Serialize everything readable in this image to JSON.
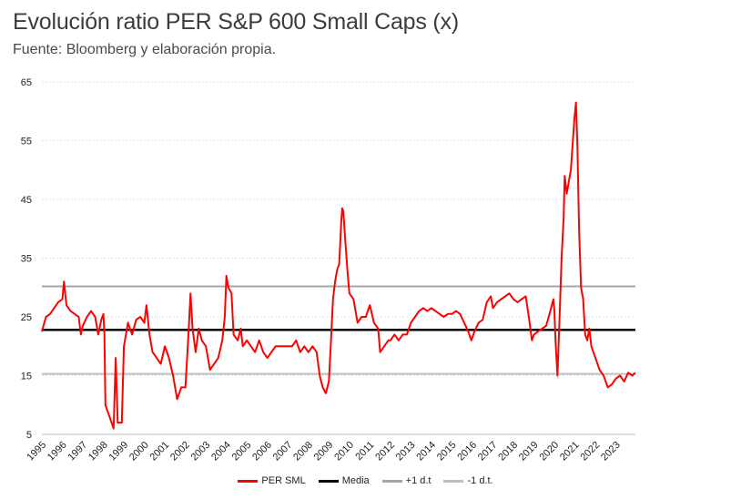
{
  "header": {
    "title": "Evolución ratio PER S&P 600 Small Caps (x)",
    "subtitle": "Fuente: Bloomberg y elaboración propia."
  },
  "chart_data": {
    "type": "line",
    "title": "Evolución ratio PER S&P 600 Small Caps (x)",
    "xlabel": "",
    "ylabel": "",
    "xlim": [
      1995,
      2023.95
    ],
    "ylim": [
      5,
      65
    ],
    "y_ticks": [
      5,
      15,
      25,
      35,
      45,
      55,
      65
    ],
    "x_ticks": [
      "1995",
      "1996",
      "1997",
      "1998",
      "1999",
      "2000",
      "2001",
      "2002",
      "2003",
      "2004",
      "2005",
      "2006",
      "2007",
      "2008",
      "2009",
      "2010",
      "2011",
      "2012",
      "2013",
      "2014",
      "2015",
      "2016",
      "2017",
      "2018",
      "2019",
      "2020",
      "2021",
      "2022",
      "2023"
    ],
    "grid": true,
    "legend_position": "bottom",
    "series": [
      {
        "name": "PER SML",
        "color": "#ff0000",
        "points": [
          [
            1995.0,
            22.5
          ],
          [
            1995.2,
            25
          ],
          [
            1995.4,
            25.5
          ],
          [
            1995.6,
            26.5
          ],
          [
            1995.8,
            27.5
          ],
          [
            1996.0,
            28
          ],
          [
            1996.08,
            31
          ],
          [
            1996.2,
            27
          ],
          [
            1996.4,
            26
          ],
          [
            1996.6,
            25.5
          ],
          [
            1996.8,
            25
          ],
          [
            1996.9,
            22
          ],
          [
            1997.0,
            23.5
          ],
          [
            1997.2,
            25
          ],
          [
            1997.4,
            26
          ],
          [
            1997.6,
            25
          ],
          [
            1997.75,
            22
          ],
          [
            1997.9,
            24.5
          ],
          [
            1998.0,
            25.5
          ],
          [
            1998.05,
            22
          ],
          [
            1998.1,
            10
          ],
          [
            1998.3,
            8
          ],
          [
            1998.5,
            6
          ],
          [
            1998.6,
            18
          ],
          [
            1998.7,
            7
          ],
          [
            1998.9,
            7
          ],
          [
            1999.0,
            20
          ],
          [
            1999.2,
            24
          ],
          [
            1999.4,
            22
          ],
          [
            1999.6,
            24.5
          ],
          [
            1999.8,
            25
          ],
          [
            2000.0,
            24
          ],
          [
            2000.1,
            27
          ],
          [
            2000.25,
            22
          ],
          [
            2000.4,
            19
          ],
          [
            2000.6,
            18
          ],
          [
            2000.8,
            17
          ],
          [
            2001.0,
            20
          ],
          [
            2001.2,
            18
          ],
          [
            2001.4,
            15
          ],
          [
            2001.6,
            11
          ],
          [
            2001.8,
            13
          ],
          [
            2002.0,
            13
          ],
          [
            2002.15,
            22
          ],
          [
            2002.25,
            29
          ],
          [
            2002.35,
            23
          ],
          [
            2002.5,
            19
          ],
          [
            2002.65,
            23
          ],
          [
            2002.8,
            21
          ],
          [
            2003.0,
            20
          ],
          [
            2003.2,
            16
          ],
          [
            2003.4,
            17
          ],
          [
            2003.6,
            18
          ],
          [
            2003.8,
            21
          ],
          [
            2003.92,
            25
          ],
          [
            2004.0,
            32
          ],
          [
            2004.1,
            30
          ],
          [
            2004.25,
            29
          ],
          [
            2004.35,
            22
          ],
          [
            2004.55,
            21
          ],
          [
            2004.7,
            23
          ],
          [
            2004.8,
            20
          ],
          [
            2005.0,
            21
          ],
          [
            2005.2,
            20
          ],
          [
            2005.4,
            19
          ],
          [
            2005.6,
            21
          ],
          [
            2005.8,
            19
          ],
          [
            2006.0,
            18
          ],
          [
            2006.2,
            19
          ],
          [
            2006.4,
            20
          ],
          [
            2006.6,
            20
          ],
          [
            2006.8,
            20
          ],
          [
            2007.0,
            20
          ],
          [
            2007.2,
            20
          ],
          [
            2007.4,
            21
          ],
          [
            2007.6,
            19
          ],
          [
            2007.8,
            20
          ],
          [
            2008.0,
            19
          ],
          [
            2008.2,
            20
          ],
          [
            2008.4,
            19
          ],
          [
            2008.55,
            15
          ],
          [
            2008.7,
            13
          ],
          [
            2008.85,
            12
          ],
          [
            2009.0,
            14
          ],
          [
            2009.1,
            21
          ],
          [
            2009.2,
            28
          ],
          [
            2009.3,
            31
          ],
          [
            2009.4,
            33
          ],
          [
            2009.5,
            34
          ],
          [
            2009.6,
            41
          ],
          [
            2009.65,
            43.5
          ],
          [
            2009.7,
            43
          ],
          [
            2009.8,
            38
          ],
          [
            2009.9,
            33
          ],
          [
            2010.0,
            29
          ],
          [
            2010.2,
            28
          ],
          [
            2010.4,
            24
          ],
          [
            2010.6,
            25
          ],
          [
            2010.8,
            25
          ],
          [
            2011.0,
            27
          ],
          [
            2011.2,
            24
          ],
          [
            2011.4,
            23
          ],
          [
            2011.5,
            19
          ],
          [
            2011.7,
            20
          ],
          [
            2011.9,
            21
          ],
          [
            2012.0,
            21
          ],
          [
            2012.2,
            22
          ],
          [
            2012.4,
            21
          ],
          [
            2012.6,
            22
          ],
          [
            2012.8,
            22
          ],
          [
            2013.0,
            24
          ],
          [
            2013.2,
            25
          ],
          [
            2013.4,
            26
          ],
          [
            2013.6,
            26.5
          ],
          [
            2013.8,
            26
          ],
          [
            2014.0,
            26.5
          ],
          [
            2014.2,
            26
          ],
          [
            2014.4,
            25.5
          ],
          [
            2014.6,
            25
          ],
          [
            2014.8,
            25.5
          ],
          [
            2015.0,
            25.5
          ],
          [
            2015.2,
            26
          ],
          [
            2015.4,
            25.5
          ],
          [
            2015.6,
            24
          ],
          [
            2015.8,
            22.5
          ],
          [
            2015.95,
            21
          ],
          [
            2016.1,
            22.5
          ],
          [
            2016.3,
            24
          ],
          [
            2016.5,
            24.5
          ],
          [
            2016.7,
            27.5
          ],
          [
            2016.9,
            28.5
          ],
          [
            2017.0,
            26.5
          ],
          [
            2017.2,
            27.5
          ],
          [
            2017.4,
            28
          ],
          [
            2017.6,
            28.5
          ],
          [
            2017.8,
            29
          ],
          [
            2018.0,
            28
          ],
          [
            2018.2,
            27.5
          ],
          [
            2018.4,
            28
          ],
          [
            2018.6,
            28.5
          ],
          [
            2018.75,
            25
          ],
          [
            2018.9,
            21
          ],
          [
            2019.0,
            22
          ],
          [
            2019.2,
            22.5
          ],
          [
            2019.4,
            23
          ],
          [
            2019.6,
            23.5
          ],
          [
            2019.8,
            26
          ],
          [
            2019.95,
            28
          ],
          [
            2020.0,
            26
          ],
          [
            2020.05,
            21
          ],
          [
            2020.15,
            15
          ],
          [
            2020.25,
            25
          ],
          [
            2020.35,
            35
          ],
          [
            2020.45,
            42
          ],
          [
            2020.5,
            49
          ],
          [
            2020.6,
            46
          ],
          [
            2020.7,
            48
          ],
          [
            2020.8,
            50
          ],
          [
            2020.9,
            55
          ],
          [
            2020.98,
            59
          ],
          [
            2021.05,
            61.5
          ],
          [
            2021.12,
            54
          ],
          [
            2021.2,
            40
          ],
          [
            2021.3,
            30
          ],
          [
            2021.4,
            28
          ],
          [
            2021.5,
            22
          ],
          [
            2021.6,
            21
          ],
          [
            2021.7,
            23
          ],
          [
            2021.8,
            20
          ],
          [
            2022.0,
            18
          ],
          [
            2022.2,
            16
          ],
          [
            2022.4,
            15
          ],
          [
            2022.6,
            13
          ],
          [
            2022.8,
            13.5
          ],
          [
            2023.0,
            14.5
          ],
          [
            2023.2,
            15
          ],
          [
            2023.4,
            14
          ],
          [
            2023.6,
            15.5
          ],
          [
            2023.8,
            15
          ],
          [
            2023.95,
            15.5
          ]
        ]
      },
      {
        "name": "Media",
        "color": "#000000",
        "value": 22.8
      },
      {
        "name": "+1 d.t",
        "color": "#a6a6a6",
        "value": 30.2
      },
      {
        "name": "-1 d.t.",
        "color": "#bfbfbf",
        "value": 15.3
      }
    ]
  }
}
